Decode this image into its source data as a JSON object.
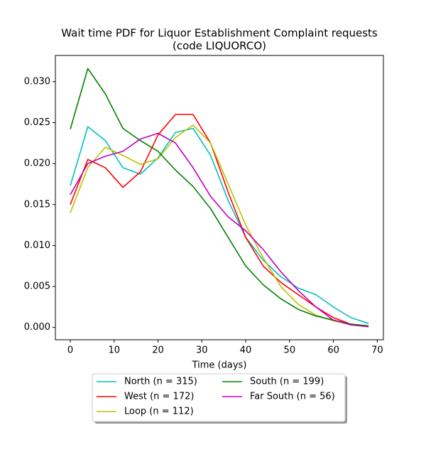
{
  "chart_data": {
    "type": "line",
    "title": [
      "Wait time PDF for Liquor Establishment Complaint  requests",
      "(code LIQUORCO)"
    ],
    "xlabel": "Time (days)",
    "x": [
      0,
      4,
      8,
      12,
      16,
      20,
      24,
      28,
      32,
      36,
      40,
      44,
      48,
      52,
      56,
      60,
      64,
      68
    ],
    "series": [
      {
        "name": "North (n = 315)",
        "color": "#00bfbf",
        "values": [
          0.0173,
          0.0245,
          0.0228,
          0.0195,
          0.0187,
          0.0207,
          0.0238,
          0.0243,
          0.021,
          0.0155,
          0.011,
          0.0082,
          0.0062,
          0.0048,
          0.004,
          0.0025,
          0.0012,
          0.0005
        ]
      },
      {
        "name": "West (n = 172)",
        "color": "#ff0000",
        "values": [
          0.015,
          0.0205,
          0.0195,
          0.0171,
          0.019,
          0.0235,
          0.026,
          0.026,
          0.0225,
          0.0165,
          0.011,
          0.0075,
          0.0055,
          0.004,
          0.0025,
          0.0012,
          0.0004,
          0.0001
        ]
      },
      {
        "name": "Loop (n = 112)",
        "color": "#bfbf00",
        "values": [
          0.014,
          0.0195,
          0.022,
          0.021,
          0.0199,
          0.0206,
          0.0232,
          0.0247,
          0.0225,
          0.0175,
          0.0125,
          0.0085,
          0.005,
          0.0028,
          0.0015,
          0.0008,
          0.0004,
          0.0002
        ]
      },
      {
        "name": "South (n = 199)",
        "color": "#008000",
        "values": [
          0.0242,
          0.0316,
          0.0285,
          0.0243,
          0.0228,
          0.0215,
          0.0192,
          0.0172,
          0.0145,
          0.011,
          0.0075,
          0.0052,
          0.0035,
          0.0022,
          0.0014,
          0.0009,
          0.0004,
          0.0002
        ]
      },
      {
        "name": "Far South (n = 56)",
        "color": "#bf00bf",
        "values": [
          0.0162,
          0.02,
          0.0209,
          0.0215,
          0.023,
          0.0237,
          0.0225,
          0.0195,
          0.016,
          0.0135,
          0.0118,
          0.0095,
          0.0068,
          0.0045,
          0.0025,
          0.0009,
          0.0003,
          0.0001
        ]
      }
    ],
    "xlim": [
      -3.4,
      71.4
    ],
    "xticks": [
      0,
      10,
      20,
      30,
      40,
      50,
      60,
      70
    ],
    "ylim": [
      -0.0015,
      0.0332
    ],
    "yticks": [
      {
        "value": 0,
        "label": "0.000"
      },
      {
        "value": 0.005,
        "label": "0.005"
      },
      {
        "value": 0.01,
        "label": "0.010"
      },
      {
        "value": 0.015,
        "label": "0.015"
      },
      {
        "value": 0.02,
        "label": "0.020"
      },
      {
        "value": 0.025,
        "label": "0.025"
      },
      {
        "value": 0.03,
        "label": "0.030"
      }
    ],
    "legend_order": [
      0,
      3,
      1,
      4,
      2
    ]
  }
}
